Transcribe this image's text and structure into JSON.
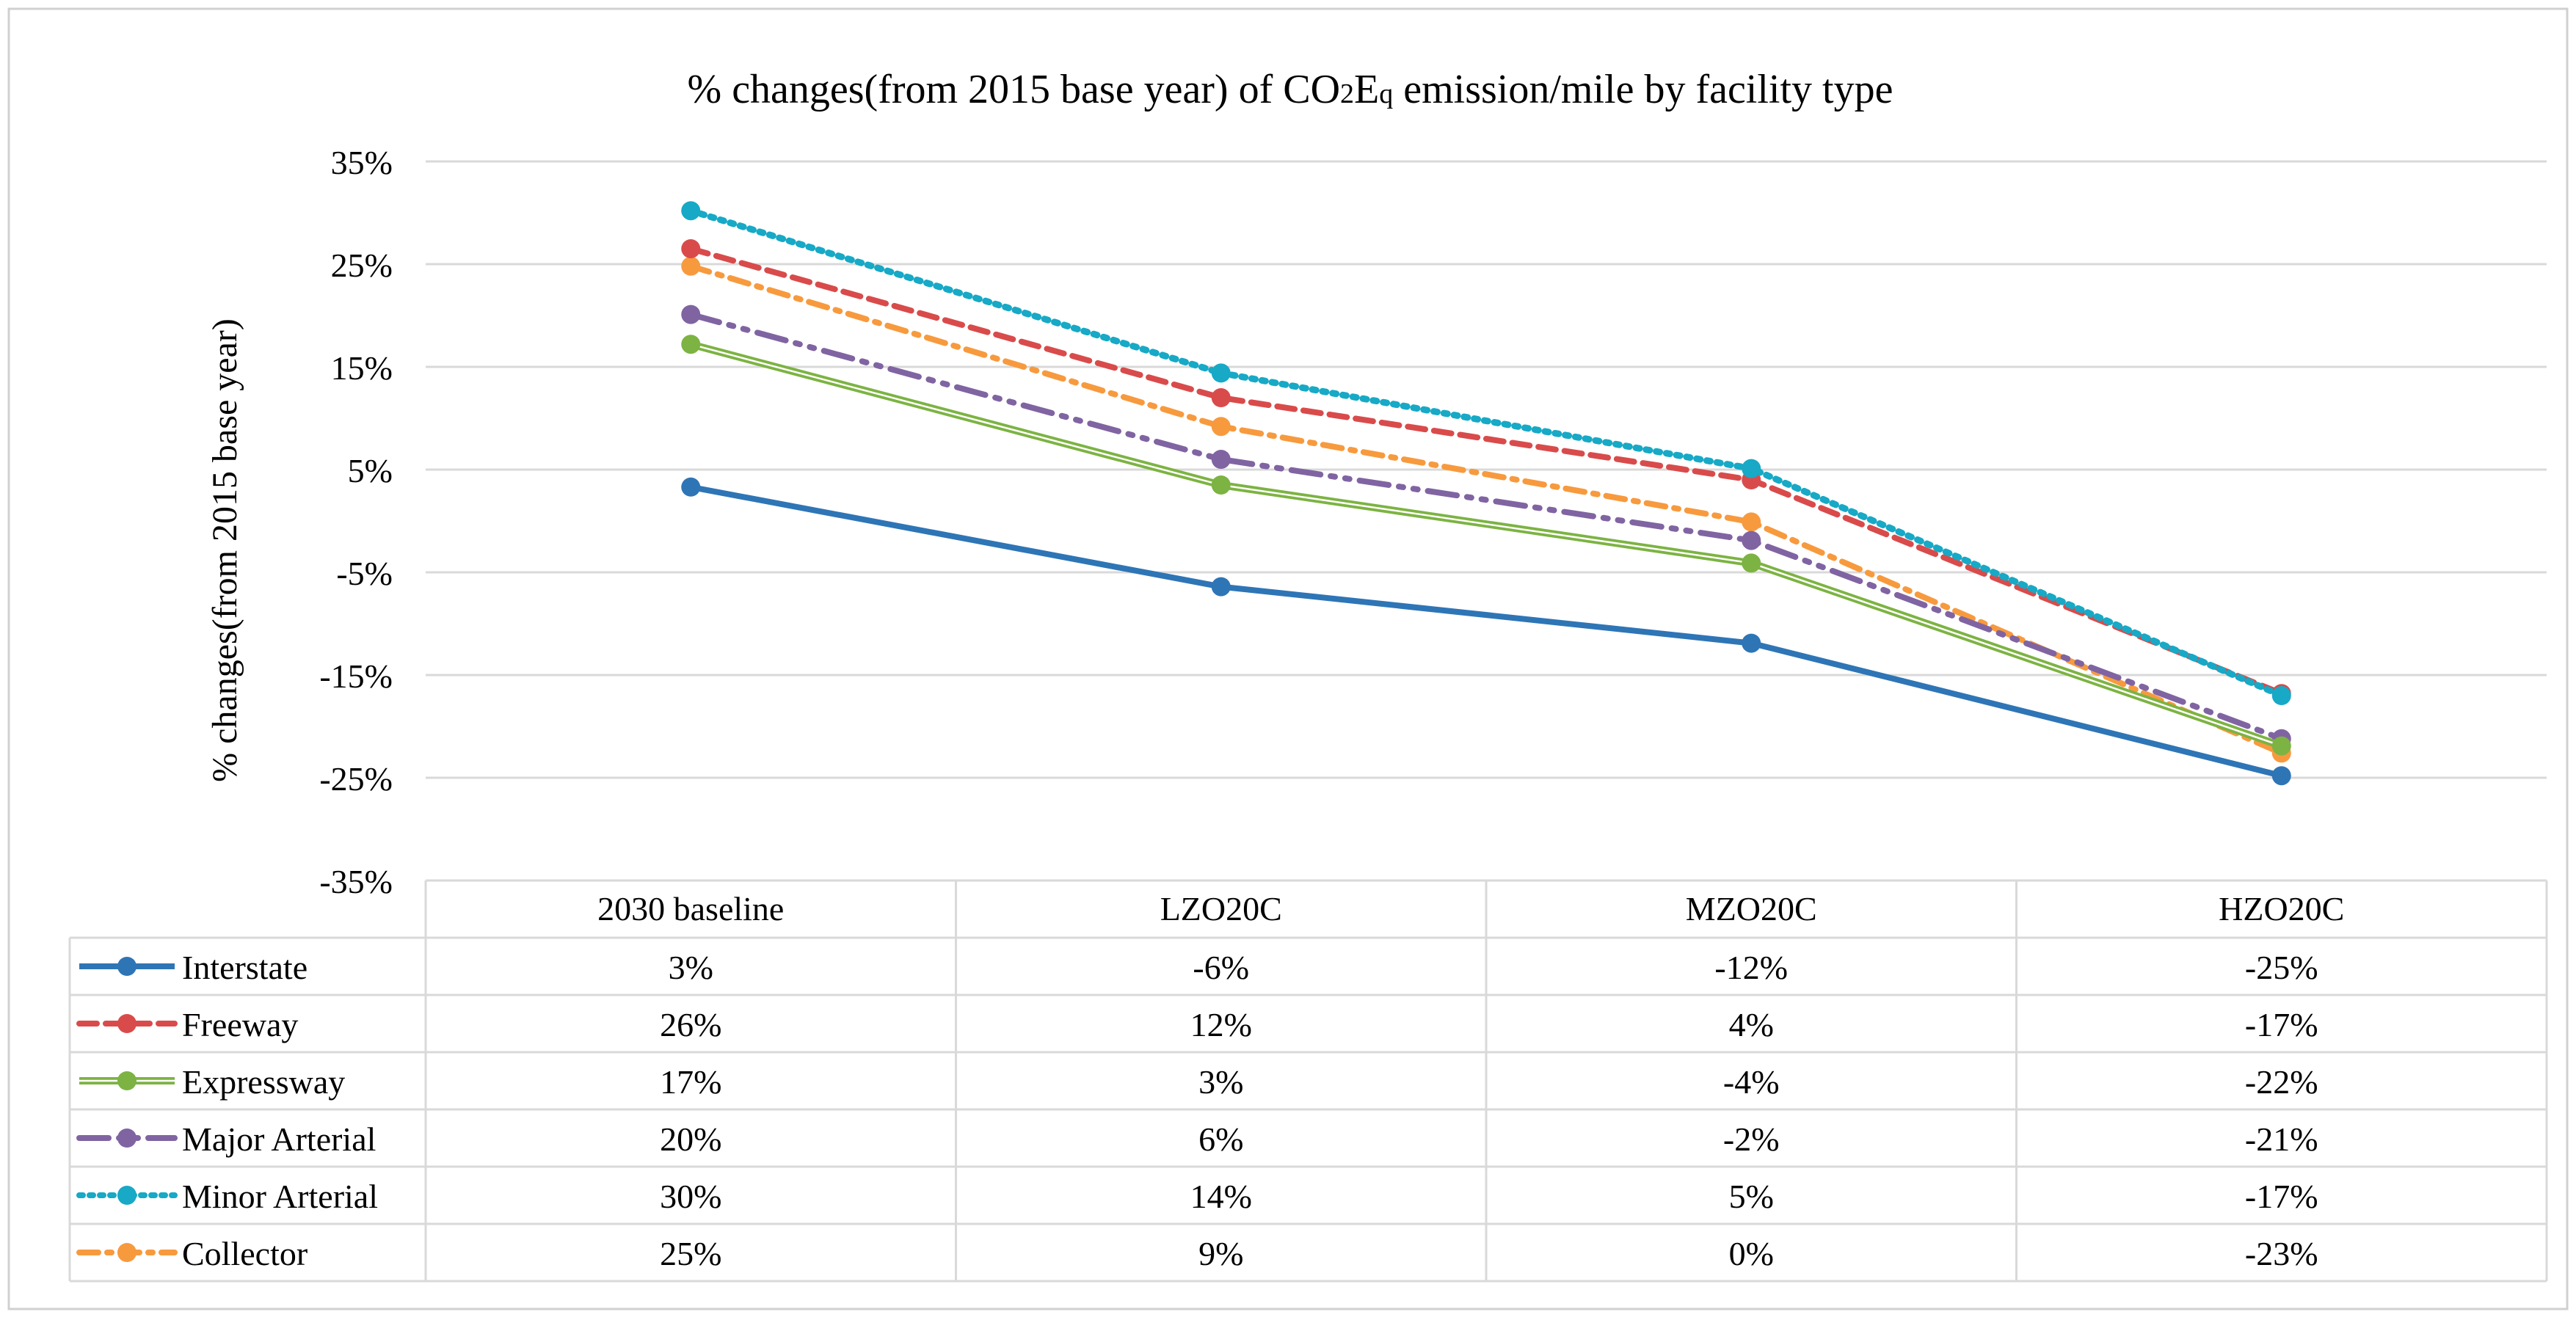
{
  "chart_data": {
    "type": "line",
    "title_parts": [
      "% changes(from 2015 base year) of CO",
      "2",
      "E",
      "q",
      " emission/mile by facility type"
    ],
    "ylabel": "% changes(from 2015 base year)",
    "xlabel": "",
    "ylim": [
      -35,
      35
    ],
    "yticks": [
      35,
      25,
      15,
      5,
      -5,
      -15,
      -25,
      -35
    ],
    "ytick_labels": [
      "35%",
      "25%",
      "15%",
      "5%",
      "-5%",
      "-15%",
      "-25%",
      "-35%"
    ],
    "grid": true,
    "legend": "data-table-below",
    "categories": [
      "2030 baseline",
      "LZO20C",
      "MZO20C",
      "HZO20C"
    ],
    "series": [
      {
        "name": "Interstate",
        "values": [
          3.3,
          -6.4,
          -11.9,
          -24.8
        ],
        "labels": [
          "3%",
          "-6%",
          "-12%",
          "-25%"
        ],
        "color": "#2E75B6",
        "style": "solid"
      },
      {
        "name": "Freeway",
        "values": [
          26.5,
          12.0,
          4.0,
          -16.8
        ],
        "labels": [
          "26%",
          "12%",
          "4%",
          "-17%"
        ],
        "color": "#D94B4B",
        "style": "dashed"
      },
      {
        "name": "Expressway",
        "values": [
          17.2,
          3.5,
          -4.1,
          -21.9
        ],
        "labels": [
          "17%",
          "3%",
          "-4%",
          "-22%"
        ],
        "color": "#7CB342",
        "style": "double"
      },
      {
        "name": "Major Arterial",
        "values": [
          20.1,
          6.0,
          -1.9,
          -21.2
        ],
        "labels": [
          "20%",
          "6%",
          "-2%",
          "-21%"
        ],
        "color": "#8064A2",
        "style": "dashdotdot"
      },
      {
        "name": "Minor Arterial",
        "values": [
          30.2,
          14.4,
          5.1,
          -17.0
        ],
        "labels": [
          "30%",
          "14%",
          "5%",
          "-17%"
        ],
        "color": "#17A9C6",
        "style": "dotted"
      },
      {
        "name": "Collector",
        "values": [
          24.8,
          9.2,
          -0.1,
          -22.6
        ],
        "labels": [
          "25%",
          "9%",
          "0%",
          "-23%"
        ],
        "color": "#F79A3E",
        "style": "dashdot"
      }
    ]
  }
}
